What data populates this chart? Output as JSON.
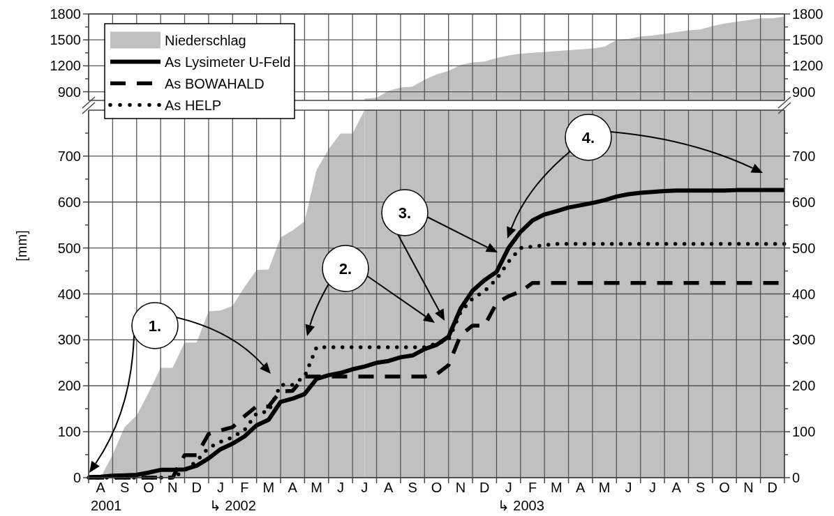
{
  "chart_data": [
    {
      "type": "area",
      "ylim": [
        800,
        1800
      ],
      "y2lim": [
        800,
        1800
      ],
      "categories": [
        null,
        "A",
        null,
        "S",
        null,
        "O",
        null,
        "N",
        null,
        "D",
        null,
        "J",
        null,
        "F",
        null,
        "M",
        null,
        "A",
        null,
        "M",
        null,
        "J",
        null,
        "J",
        null,
        "A",
        null,
        "S",
        null,
        "O",
        null,
        "N",
        null,
        "D",
        null,
        "J",
        null,
        "F",
        null,
        "M",
        null,
        "A",
        null,
        "M",
        null,
        "J",
        null,
        "J",
        null,
        "A",
        null,
        "S",
        null,
        "O",
        null,
        "N",
        null,
        "D",
        null
      ],
      "yticks": [
        900,
        {
          "value": 1050,
          "label": null
        },
        1200,
        {
          "value": 1350,
          "label": null
        },
        1500,
        {
          "value": 1650,
          "label": null
        },
        1800
      ],
      "y2ticks": [
        900,
        {
          "value": 1050,
          "label": null
        },
        1200,
        {
          "value": 1350,
          "label": null
        },
        1500,
        {
          "value": 1650,
          "label": null
        },
        1800
      ],
      "tick_labels": "y",
      "grid": true,
      "series": [
        {
          "color": "#c0c0c0",
          "values": [
            null,
            null,
            null,
            null,
            null,
            null,
            null,
            null,
            null,
            null,
            null,
            null,
            null,
            null,
            null,
            null,
            null,
            null,
            null,
            null,
            null,
            null,
            null,
            820,
            830,
            910,
            950,
            960,
            1040,
            1100,
            1140,
            1210,
            1240,
            1250,
            1290,
            1320,
            1340,
            1350,
            1360,
            1370,
            1380,
            1390,
            1400,
            1420,
            1500,
            1510,
            1540,
            1550,
            1570,
            1590,
            1610,
            1620,
            1660,
            1690,
            1710,
            1730,
            1750,
            1750,
            1770
          ]
        }
      ]
    },
    {
      "type": "line",
      "ylim": [
        0,
        800
      ],
      "y2lim": [
        0,
        800
      ],
      "ylabel": "[mm]",
      "categories": [
        null,
        "A",
        null,
        "S",
        null,
        "O",
        null,
        "N",
        null,
        "D",
        null,
        "J",
        null,
        "F",
        null,
        "M",
        null,
        "A",
        null,
        "M",
        null,
        "J",
        null,
        "J",
        null,
        "A",
        null,
        "S",
        null,
        "O",
        null,
        "N",
        null,
        "D",
        null,
        "J",
        null,
        "F",
        null,
        "M",
        null,
        "A",
        null,
        "M",
        null,
        "J",
        null,
        "J",
        null,
        "A",
        null,
        "S",
        null,
        "O",
        null,
        "N",
        null,
        "D",
        null
      ],
      "yticks": [
        0,
        {
          "value": 50,
          "label": null
        },
        100,
        {
          "value": 150,
          "label": null
        },
        200,
        {
          "value": 250,
          "label": null
        },
        300,
        {
          "value": 350,
          "label": null
        },
        400,
        {
          "value": 450,
          "label": null
        },
        500,
        {
          "value": 550,
          "label": null
        },
        600,
        {
          "value": 650,
          "label": null
        },
        700,
        {
          "value": 750,
          "label": null
        }
      ],
      "y2ticks": [
        0,
        {
          "value": 50,
          "label": null
        },
        100,
        {
          "value": 150,
          "label": null
        },
        200,
        {
          "value": 250,
          "label": null
        },
        300,
        {
          "value": 350,
          "label": null
        },
        400,
        {
          "value": 450,
          "label": null
        },
        500,
        {
          "value": 550,
          "label": null
        },
        600,
        {
          "value": 650,
          "label": null
        },
        700,
        {
          "value": 750,
          "label": null
        }
      ],
      "grid": true,
      "legend": "top left",
      "series": [
        {
          "name": "Niederschlag",
          "type": "area",
          "color": "#c0c0c0",
          "values": [
            0,
            0,
            50,
            110,
            135,
            185,
            239,
            239,
            294,
            294,
            362,
            364,
            374,
            415,
            452,
            453,
            523,
            538,
            558,
            670,
            715,
            749,
            749,
            800,
            null,
            null,
            null,
            null,
            null,
            null,
            null,
            null,
            null,
            null,
            null,
            null,
            null,
            null,
            null,
            null,
            null,
            null,
            null,
            null,
            null,
            null,
            null,
            null,
            null,
            null,
            null,
            null,
            null,
            null,
            null,
            null,
            null,
            null,
            null
          ]
        },
        {
          "name": "As Lysimeter U-Feld",
          "color": "#000000",
          "line_style": "solid",
          "values": [
            1,
            2,
            4,
            5,
            6,
            11,
            17,
            17,
            18,
            26,
            42,
            62,
            74,
            90,
            114,
            126,
            165,
            172,
            182,
            215,
            223,
            228,
            236,
            242,
            250,
            254,
            262,
            266,
            280,
            289,
            307,
            368,
            407,
            430,
            448,
            500,
            535,
            560,
            573,
            580,
            588,
            593,
            598,
            604,
            612,
            617,
            620,
            622,
            624,
            625,
            625,
            625,
            625,
            625,
            626,
            626,
            626,
            626,
            626
          ]
        },
        {
          "name": "As BOWAHALD",
          "color": "#000000",
          "line_style": "dashed",
          "values": [
            0,
            0,
            0,
            0,
            0,
            0,
            0,
            0,
            49,
            49,
            95,
            103,
            110,
            134,
            155,
            155,
            188,
            189,
            220,
            220,
            220,
            220,
            220,
            220,
            220,
            220,
            220,
            220,
            220,
            225,
            245,
            310,
            331,
            331,
            380,
            395,
            405,
            424,
            424,
            424,
            424,
            424,
            424,
            424,
            424,
            424,
            424,
            424,
            424,
            424,
            424,
            424,
            424,
            424,
            424,
            424,
            424,
            424,
            424
          ]
        },
        {
          "name": "As HELP",
          "color": "#000000",
          "line_style": "dotted",
          "values": [
            0,
            0,
            0,
            0,
            0,
            0,
            0,
            0,
            15,
            36,
            65,
            78,
            88,
            104,
            140,
            144,
            202,
            202,
            220,
            284,
            284,
            284,
            284,
            284,
            284,
            284,
            284,
            284,
            284,
            292,
            300,
            360,
            390,
            406,
            432,
            470,
            500,
            503,
            506,
            509,
            509,
            509,
            509,
            509,
            509,
            509,
            509,
            509,
            509,
            509,
            509,
            509,
            509,
            509,
            509,
            509,
            509,
            509,
            509
          ]
        }
      ],
      "annotations": [
        "1.",
        "2.",
        "3.",
        "4.",
        "2001",
        "↳ 2002",
        "↳ 2003"
      ]
    }
  ]
}
